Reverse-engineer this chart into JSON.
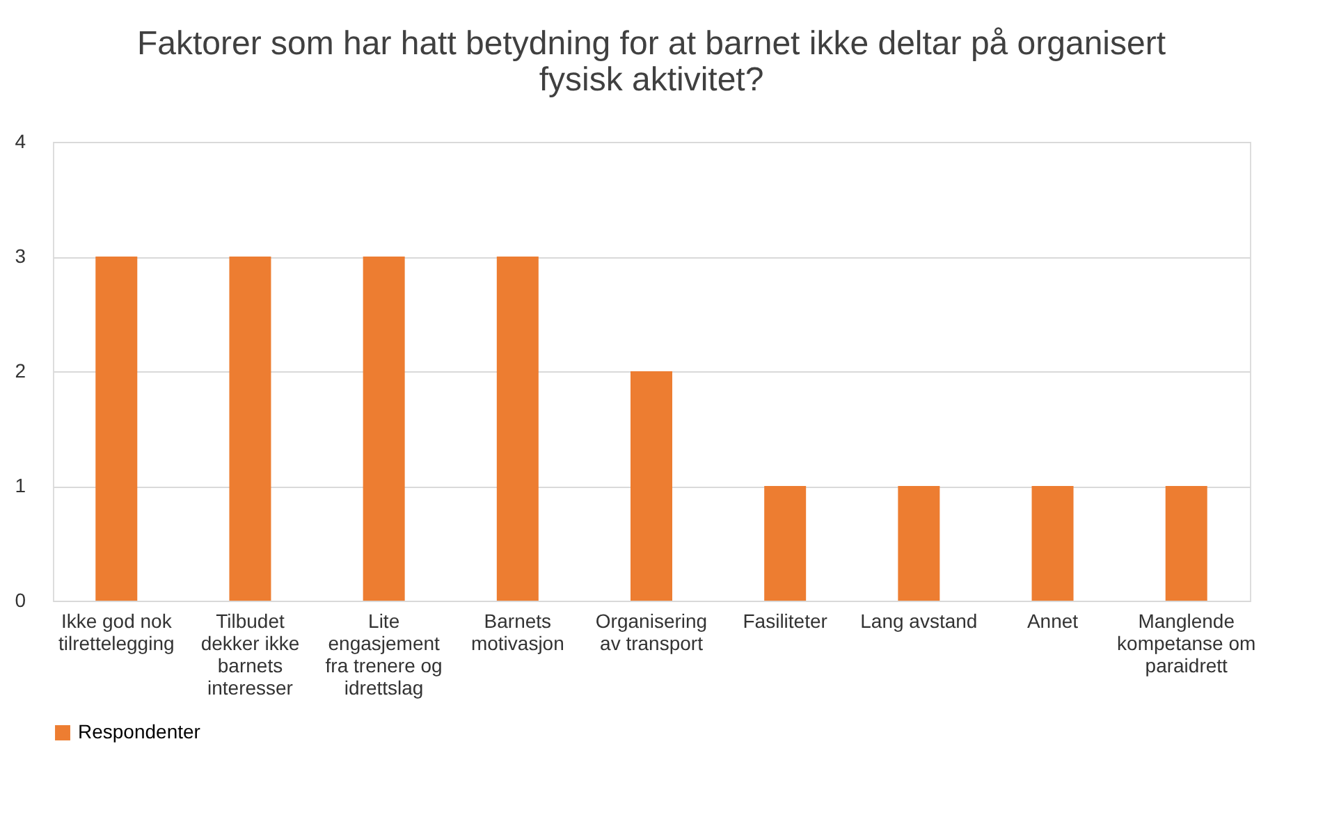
{
  "chart_data": {
    "type": "bar",
    "title": "Faktorer som har hatt betydning for at barnet ikke deltar på organisert fysisk aktivitet?",
    "categories": [
      "Ikke god nok tilrettelegging",
      "Tilbudet dekker ikke barnets interesser",
      "Lite engasjement fra trenere og idrettslag",
      "Barnets motivasjon",
      "Organisering av transport",
      "Fasiliteter",
      "Lang avstand",
      "Annet",
      "Manglende kompetanse om paraidrett"
    ],
    "series": [
      {
        "name": "Respondenter",
        "color": "#ed7d31",
        "values": [
          3,
          3,
          3,
          3,
          2,
          1,
          1,
          1,
          1
        ]
      }
    ],
    "ylim": [
      0,
      4
    ],
    "yticks": [
      0,
      1,
      2,
      3,
      4
    ],
    "grid": "y",
    "legend": "bottom"
  }
}
